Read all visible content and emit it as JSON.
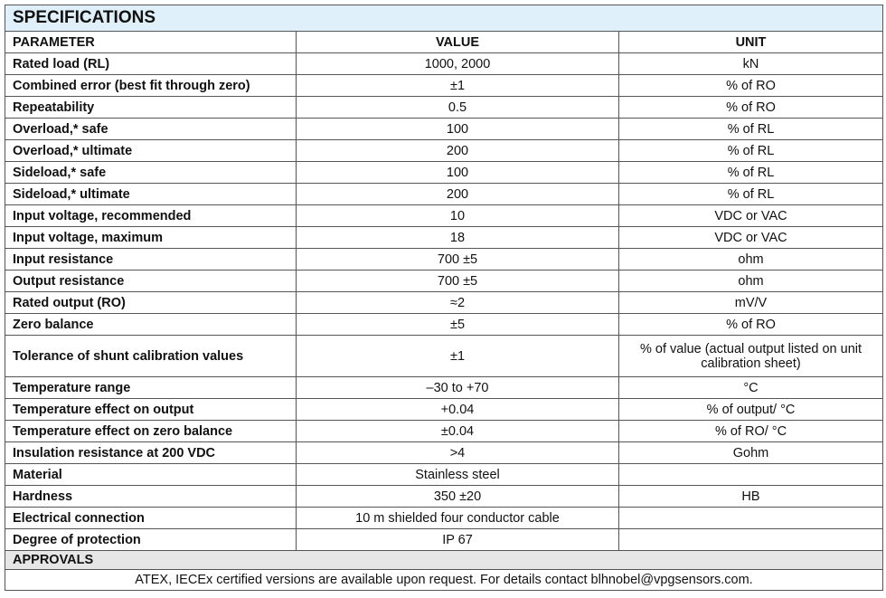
{
  "title": "SPECIFICATIONS",
  "headers": [
    "PARAMETER",
    "VALUE",
    "UNIT"
  ],
  "rows": [
    [
      "Rated load (RL)",
      "1000, 2000",
      "kN"
    ],
    [
      "Combined error (best fit through zero)",
      "±1",
      "% of RO"
    ],
    [
      "Repeatability",
      "0.5",
      "% of RO"
    ],
    [
      "Overload,* safe",
      "100",
      "% of RL"
    ],
    [
      "Overload,* ultimate",
      "200",
      "% of RL"
    ],
    [
      "Sideload,* safe",
      "100",
      "% of RL"
    ],
    [
      "Sideload,* ultimate",
      "200",
      "% of RL"
    ],
    [
      "Input voltage, recommended",
      "10",
      "VDC or VAC"
    ],
    [
      "Input voltage, maximum",
      "18",
      "VDC or VAC"
    ],
    [
      "Input resistance",
      "700 ±5",
      "ohm"
    ],
    [
      "Output resistance",
      "700 ±5",
      "ohm"
    ],
    [
      "Rated output (RO)",
      "≈2",
      "mV/V"
    ],
    [
      "Zero balance",
      "±5",
      "% of RO"
    ],
    [
      "Tolerance of shunt calibration values",
      "±1",
      "% of value (actual output listed on unit calibration sheet)"
    ],
    [
      "Temperature range",
      "–30 to +70",
      "°C"
    ],
    [
      "Temperature effect on output",
      "+0.04",
      "% of output/ °C"
    ],
    [
      "Temperature effect on zero balance",
      "±0.04",
      "% of RO/ °C"
    ],
    [
      "Insulation resistance at 200 VDC",
      ">4",
      "Gohm"
    ],
    [
      "Material",
      "Stainless steel",
      ""
    ],
    [
      "Hardness",
      "350 ±20",
      "HB"
    ],
    [
      "Electrical connection",
      "10 m shielded four conductor cable",
      ""
    ],
    [
      "Degree of protection",
      "IP 67",
      ""
    ]
  ],
  "approvals": {
    "label": "APPROVALS",
    "text": "ATEX, IECEx certified versions are available upon request. For details contact blhnobel@vpgsensors.com."
  },
  "colors": {
    "title_bg": "#dff0fa",
    "approvals_bg": "#e6e6e6"
  }
}
